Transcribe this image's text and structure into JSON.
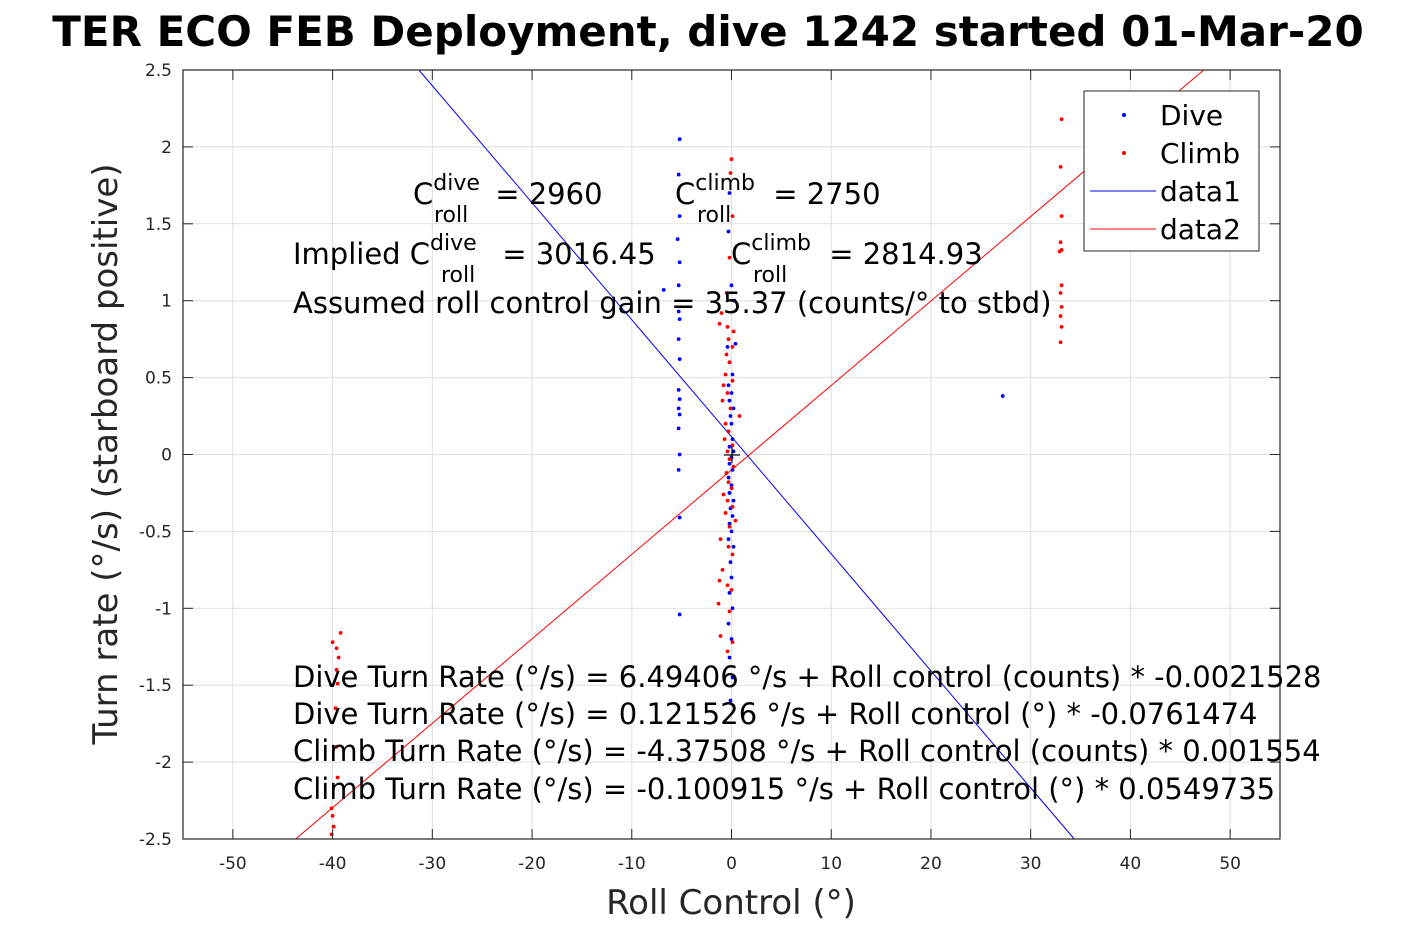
{
  "chart_data": {
    "type": "scatter",
    "title": "TER ECO FEB Deployment, dive 1242 started 01-Mar-20",
    "xlabel": "Roll Control (°)",
    "ylabel": "Turn rate (°/s) (starboard positive)",
    "xlim": [
      -55,
      55
    ],
    "ylim": [
      -2.5,
      2.5
    ],
    "xticks": [
      -50,
      -40,
      -30,
      -20,
      -10,
      0,
      10,
      20,
      30,
      40,
      50
    ],
    "yticks": [
      -2.5,
      -2,
      -1.5,
      -1,
      -0.5,
      0,
      0.5,
      1,
      1.5,
      2,
      2.5
    ],
    "grid": true,
    "legend_position": "top-right",
    "legend": [
      "Dive",
      "Climb",
      "data1",
      "data2"
    ],
    "colors": {
      "dive": "#0000ff",
      "climb": "#ff0000"
    },
    "annotations": {
      "c_dive": {
        "base": "C",
        "sup": "dive",
        "sub": "roll",
        "value": " = 2960"
      },
      "c_climb": {
        "base": "C",
        "sup": "climb",
        "sub": "roll",
        "value": " = 2750"
      },
      "implied_prefix": "Implied ",
      "implied_dive": {
        "base": "C",
        "sup": "dive",
        "sub": "roll",
        "value": " = 3016.45"
      },
      "implied_climb": {
        "base": "C",
        "sup": "climb",
        "sub": "roll",
        "value": " = 2814.93"
      },
      "gain": "Assumed roll control gain = 35.37 (counts/° to stbd)",
      "fits": [
        "Dive Turn Rate (°/s) = 6.49406 °/s + Roll control (counts) * -0.0021528",
        "Dive Turn Rate (°/s) = 0.121526 °/s + Roll control (°) * -0.0761474",
        "Climb Turn Rate (°/s) = -4.37508 °/s + Roll control (counts) * 0.001554",
        "Climb Turn Rate (°/s) = -0.100915 °/s + Roll control (°) * 0.0549735"
      ]
    },
    "series": [
      {
        "name": "Dive",
        "kind": "points",
        "color": "#0000ff",
        "points": [
          [
            -5.2,
            2.05
          ],
          [
            -5.3,
            1.82
          ],
          [
            -5.2,
            1.55
          ],
          [
            -5.4,
            1.4
          ],
          [
            -5.2,
            1.25
          ],
          [
            -5.3,
            1.1
          ],
          [
            -6.8,
            1.07
          ],
          [
            -5.3,
            0.93
          ],
          [
            -5.2,
            0.88
          ],
          [
            -5.3,
            0.75
          ],
          [
            -5.2,
            0.62
          ],
          [
            -5.3,
            0.42
          ],
          [
            -5.2,
            0.36
          ],
          [
            -5.3,
            0.3
          ],
          [
            -5.2,
            0.26
          ],
          [
            -5.3,
            0.17
          ],
          [
            -5.2,
            0.0
          ],
          [
            -5.3,
            -0.1
          ],
          [
            -5.2,
            -0.41
          ],
          [
            -5.2,
            -1.04
          ],
          [
            -0.2,
            1.7
          ],
          [
            -0.3,
            1.45
          ],
          [
            0.0,
            1.1
          ],
          [
            0.3,
            1.0
          ],
          [
            0.4,
            0.72
          ],
          [
            -0.4,
            0.7
          ],
          [
            -0.2,
            0.6
          ],
          [
            0.1,
            0.52
          ],
          [
            -0.3,
            0.45
          ],
          [
            0.0,
            0.4
          ],
          [
            -0.2,
            0.35
          ],
          [
            0.2,
            0.3
          ],
          [
            -0.1,
            0.25
          ],
          [
            0.0,
            0.2
          ],
          [
            -0.3,
            0.15
          ],
          [
            0.1,
            0.1
          ],
          [
            -0.2,
            0.05
          ],
          [
            0.2,
            0.02
          ],
          [
            0.0,
            -0.02
          ],
          [
            -0.2,
            -0.06
          ],
          [
            0.1,
            -0.1
          ],
          [
            -0.3,
            -0.15
          ],
          [
            0.0,
            -0.2
          ],
          [
            -0.2,
            -0.25
          ],
          [
            0.2,
            -0.3
          ],
          [
            -0.1,
            -0.35
          ],
          [
            0.1,
            -0.4
          ],
          [
            -0.2,
            -0.45
          ],
          [
            0.0,
            -0.5
          ],
          [
            -0.3,
            -0.55
          ],
          [
            0.2,
            -0.6
          ],
          [
            -0.1,
            -0.7
          ],
          [
            0.0,
            -0.8
          ],
          [
            -0.2,
            -0.9
          ],
          [
            0.1,
            -1.0
          ],
          [
            -0.3,
            -1.1
          ],
          [
            0.0,
            -1.2
          ],
          [
            -0.2,
            -1.32
          ],
          [
            0.1,
            -1.45
          ],
          [
            -0.1,
            -1.6
          ],
          [
            27.2,
            0.38
          ]
        ]
      },
      {
        "name": "Climb",
        "kind": "points",
        "color": "#ff0000",
        "points": [
          [
            33.1,
            2.18
          ],
          [
            33.0,
            1.87
          ],
          [
            33.1,
            1.55
          ],
          [
            33.0,
            1.38
          ],
          [
            33.1,
            1.33
          ],
          [
            32.9,
            1.32
          ],
          [
            33.1,
            1.1
          ],
          [
            33.0,
            1.05
          ],
          [
            33.1,
            0.96
          ],
          [
            33.0,
            0.9
          ],
          [
            33.1,
            0.83
          ],
          [
            33.0,
            0.73
          ],
          [
            -40.0,
            -1.22
          ],
          [
            -39.2,
            -1.16
          ],
          [
            -39.6,
            -1.26
          ],
          [
            -39.4,
            -1.32
          ],
          [
            -39.6,
            -1.4
          ],
          [
            -39.5,
            -1.49
          ],
          [
            -39.7,
            -1.65
          ],
          [
            -39.6,
            -1.9
          ],
          [
            -39.5,
            -2.1
          ],
          [
            -40.1,
            -2.3
          ],
          [
            -40.0,
            -2.35
          ],
          [
            -39.9,
            -2.42
          ],
          [
            -40.1,
            -2.47
          ],
          [
            0.0,
            1.92
          ],
          [
            -0.1,
            1.83
          ],
          [
            0.1,
            1.55
          ],
          [
            -0.2,
            1.28
          ],
          [
            -0.5,
            1.05
          ],
          [
            -1.0,
            0.92
          ],
          [
            -1.2,
            0.85
          ],
          [
            -0.4,
            0.83
          ],
          [
            0.2,
            0.8
          ],
          [
            -0.3,
            0.75
          ],
          [
            0.1,
            0.7
          ],
          [
            -0.5,
            0.65
          ],
          [
            -0.2,
            0.6
          ],
          [
            -0.6,
            0.52
          ],
          [
            0.1,
            0.48
          ],
          [
            -0.8,
            0.45
          ],
          [
            -0.4,
            0.4
          ],
          [
            -0.9,
            0.35
          ],
          [
            -0.1,
            0.3
          ],
          [
            0.8,
            0.25
          ],
          [
            -0.6,
            0.2
          ],
          [
            -0.3,
            0.15
          ],
          [
            -0.7,
            0.1
          ],
          [
            0.1,
            0.06
          ],
          [
            -0.4,
            0.02
          ],
          [
            -0.2,
            -0.03
          ],
          [
            0.2,
            -0.08
          ],
          [
            -0.5,
            -0.12
          ],
          [
            -0.3,
            -0.18
          ],
          [
            0.0,
            -0.22
          ],
          [
            -0.8,
            -0.26
          ],
          [
            -0.4,
            -0.3
          ],
          [
            0.1,
            -0.34
          ],
          [
            -0.6,
            -0.38
          ],
          [
            0.4,
            -0.43
          ],
          [
            -0.2,
            -0.47
          ],
          [
            -1.1,
            -0.55
          ],
          [
            -0.3,
            -0.6
          ],
          [
            0.1,
            -0.65
          ],
          [
            -0.9,
            -0.75
          ],
          [
            -1.2,
            -0.82
          ],
          [
            -0.4,
            -0.85
          ],
          [
            0.0,
            -0.88
          ],
          [
            -1.3,
            -0.97
          ],
          [
            -0.2,
            -1.02
          ],
          [
            -1.1,
            -1.18
          ],
          [
            0.1,
            -1.22
          ],
          [
            -0.4,
            -1.28
          ]
        ]
      },
      {
        "name": "data1",
        "kind": "line",
        "color": "#0000ff",
        "x": [
          -55,
          55
        ],
        "y": [
          4.3,
          -4.07
        ]
      },
      {
        "name": "data2",
        "kind": "line",
        "color": "#ff0000",
        "x": [
          -55,
          55
        ],
        "y": [
          -3.12,
          2.92
        ]
      }
    ]
  }
}
